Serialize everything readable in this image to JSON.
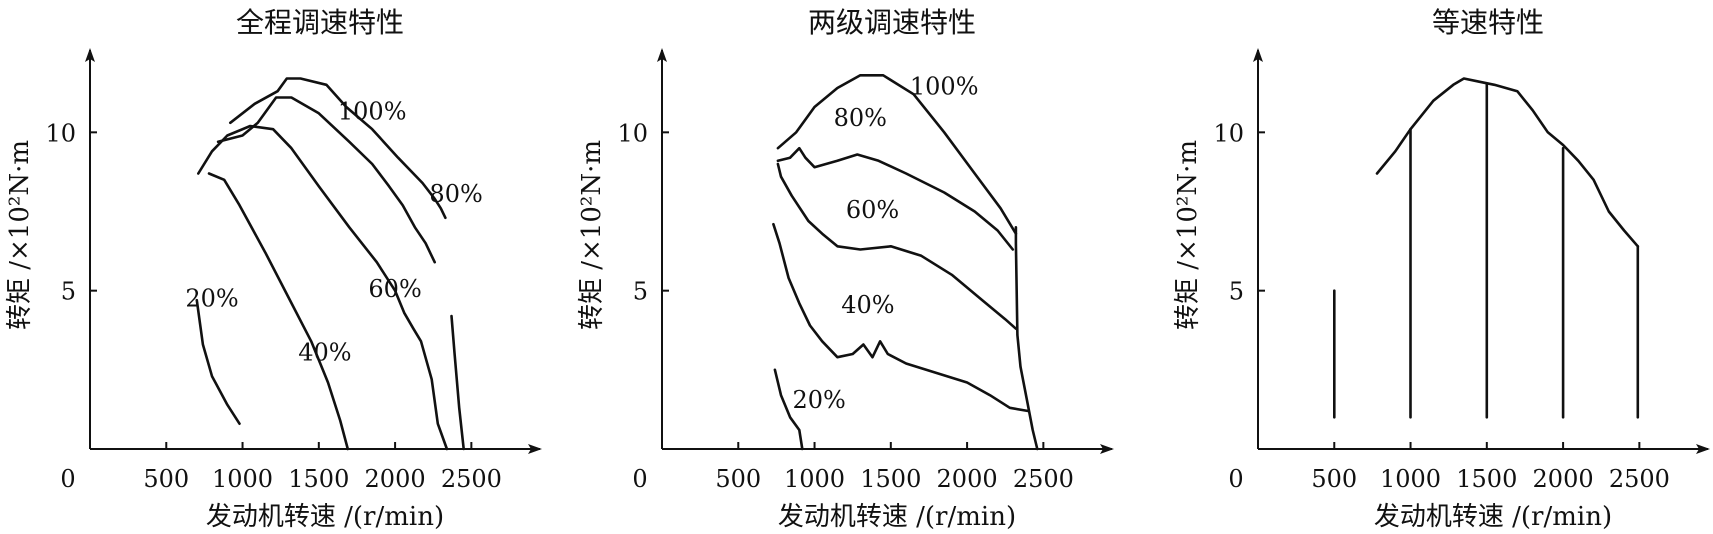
{
  "chart_data": [
    {
      "type": "line",
      "title": "全程调速特性",
      "xlabel": "发动机转速 /(r/min)",
      "ylabel": "转矩 /×10²N·m",
      "origin_label": "0",
      "xticks": [
        500,
        1000,
        1500,
        2000,
        2500
      ],
      "yticks": [
        5,
        10
      ],
      "xlim": [
        0,
        2950
      ],
      "ylim": [
        0,
        12.6
      ],
      "series": [
        {
          "name": "100%",
          "points": [
            [
              920,
              10.3
            ],
            [
              1080,
              10.9
            ],
            [
              1230,
              11.3
            ],
            [
              1290,
              11.7
            ],
            [
              1380,
              11.7
            ],
            [
              1550,
              11.5
            ],
            [
              1680,
              10.8
            ],
            [
              1850,
              10.1
            ],
            [
              2020,
              9.2
            ],
            [
              2180,
              8.4
            ],
            [
              2260,
              7.9
            ],
            [
              2300,
              7.6
            ],
            [
              2330,
              7.3
            ]
          ]
        },
        {
          "name": "80%",
          "points": [
            [
              840,
              9.7
            ],
            [
              1000,
              9.9
            ],
            [
              1100,
              10.3
            ],
            [
              1220,
              11.1
            ],
            [
              1320,
              11.1
            ],
            [
              1500,
              10.6
            ],
            [
              1700,
              9.7
            ],
            [
              1850,
              9.0
            ],
            [
              1960,
              8.3
            ],
            [
              2050,
              7.7
            ],
            [
              2130,
              7.0
            ],
            [
              2200,
              6.5
            ],
            [
              2260,
              5.9
            ]
          ]
        },
        {
          "name": "60%",
          "points": [
            [
              710,
              8.7
            ],
            [
              800,
              9.4
            ],
            [
              900,
              9.9
            ],
            [
              1050,
              10.2
            ],
            [
              1200,
              10.1
            ],
            [
              1320,
              9.5
            ],
            [
              1500,
              8.3
            ],
            [
              1700,
              7.0
            ],
            [
              1880,
              5.9
            ],
            [
              2000,
              5.0
            ],
            [
              2060,
              4.3
            ],
            [
              2120,
              3.8
            ],
            [
              2170,
              3.4
            ],
            [
              2240,
              2.2
            ],
            [
              2280,
              0.8
            ],
            [
              2340,
              0
            ]
          ]
        },
        {
          "name": "40%",
          "points": [
            [
              780,
              8.7
            ],
            [
              880,
              8.5
            ],
            [
              980,
              7.7
            ],
            [
              1150,
              6.2
            ],
            [
              1300,
              4.8
            ],
            [
              1450,
              3.4
            ],
            [
              1560,
              2.1
            ],
            [
              1640,
              0.9
            ],
            [
              1690,
              0
            ]
          ]
        },
        {
          "name": "20%",
          "points": [
            [
              700,
              4.7
            ],
            [
              740,
              3.3
            ],
            [
              800,
              2.3
            ],
            [
              900,
              1.4
            ],
            [
              980,
              0.8
            ]
          ]
        },
        {
          "name": "",
          "points": [
            [
              2370,
              4.2
            ],
            [
              2390,
              3.0
            ],
            [
              2420,
              1.3
            ],
            [
              2450,
              0
            ]
          ]
        }
      ],
      "curve_labels": [
        {
          "text": "100%",
          "x": 1850,
          "y": 10.4
        },
        {
          "text": "80%",
          "x": 2400,
          "y": 7.8
        },
        {
          "text": "60%",
          "x": 2000,
          "y": 4.8
        },
        {
          "text": "40%",
          "x": 1540,
          "y": 2.8
        },
        {
          "text": "20%",
          "x": 800,
          "y": 4.5
        }
      ]
    },
    {
      "type": "line",
      "title": "两级调速特性",
      "xlabel": "发动机转速 /(r/min)",
      "ylabel": "转矩 /×10²N·m",
      "origin_label": "0",
      "xticks": [
        500,
        1000,
        1500,
        2000,
        2500
      ],
      "yticks": [
        5,
        10
      ],
      "xlim": [
        0,
        2950
      ],
      "ylim": [
        0,
        12.6
      ],
      "series": [
        {
          "name": "100%",
          "points": [
            [
              760,
              9.5
            ],
            [
              880,
              10.0
            ],
            [
              1000,
              10.8
            ],
            [
              1150,
              11.4
            ],
            [
              1300,
              11.8
            ],
            [
              1450,
              11.8
            ],
            [
              1650,
              11.2
            ],
            [
              1850,
              10.0
            ],
            [
              2050,
              8.7
            ],
            [
              2220,
              7.6
            ],
            [
              2320,
              6.8
            ]
          ]
        },
        {
          "name": "80%",
          "points": [
            [
              760,
              9.1
            ],
            [
              840,
              9.2
            ],
            [
              900,
              9.5
            ],
            [
              940,
              9.2
            ],
            [
              1000,
              8.9
            ],
            [
              1150,
              9.1
            ],
            [
              1280,
              9.3
            ],
            [
              1420,
              9.1
            ],
            [
              1600,
              8.7
            ],
            [
              1850,
              8.1
            ],
            [
              2050,
              7.5
            ],
            [
              2200,
              6.9
            ],
            [
              2300,
              6.3
            ]
          ]
        },
        {
          "name": "60%",
          "points": [
            [
              760,
              9.0
            ],
            [
              780,
              8.6
            ],
            [
              850,
              8.0
            ],
            [
              960,
              7.2
            ],
            [
              1050,
              6.8
            ],
            [
              1150,
              6.4
            ],
            [
              1300,
              6.3
            ],
            [
              1500,
              6.4
            ],
            [
              1700,
              6.1
            ],
            [
              1900,
              5.5
            ],
            [
              2100,
              4.7
            ],
            [
              2250,
              4.1
            ],
            [
              2320,
              3.8
            ]
          ]
        },
        {
          "name": "40%",
          "points": [
            [
              730,
              7.1
            ],
            [
              770,
              6.5
            ],
            [
              830,
              5.4
            ],
            [
              900,
              4.6
            ],
            [
              970,
              3.9
            ],
            [
              1050,
              3.4
            ],
            [
              1150,
              2.9
            ],
            [
              1250,
              3.0
            ],
            [
              1320,
              3.3
            ],
            [
              1380,
              2.9
            ],
            [
              1430,
              3.4
            ],
            [
              1480,
              3.0
            ],
            [
              1600,
              2.7
            ],
            [
              1800,
              2.4
            ],
            [
              2000,
              2.1
            ],
            [
              2150,
              1.7
            ],
            [
              2280,
              1.3
            ],
            [
              2400,
              1.2
            ]
          ]
        },
        {
          "name": "20%",
          "points": [
            [
              740,
              2.5
            ],
            [
              780,
              1.7
            ],
            [
              840,
              1.0
            ],
            [
              900,
              0.6
            ],
            [
              920,
              0
            ]
          ]
        },
        {
          "name": "",
          "points": [
            [
              2320,
              7.0
            ],
            [
              2320,
              6.5
            ],
            [
              2330,
              3.6
            ],
            [
              2350,
              2.6
            ],
            [
              2390,
              1.6
            ],
            [
              2430,
              0.6
            ],
            [
              2460,
              0
            ]
          ]
        }
      ],
      "curve_labels": [
        {
          "text": "100%",
          "x": 1850,
          "y": 11.2
        },
        {
          "text": "80%",
          "x": 1300,
          "y": 10.2
        },
        {
          "text": "60%",
          "x": 1380,
          "y": 7.3
        },
        {
          "text": "40%",
          "x": 1350,
          "y": 4.3
        },
        {
          "text": "20%",
          "x": 1030,
          "y": 1.3
        }
      ]
    },
    {
      "type": "line",
      "title": "等速特性",
      "xlabel": "发动机转速 /(r/min)",
      "ylabel": "转矩 /×10²N·m",
      "origin_label": "0",
      "xticks": [
        500,
        1000,
        1500,
        2000,
        2500
      ],
      "yticks": [
        5,
        10
      ],
      "xlim": [
        0,
        2950
      ],
      "ylim": [
        0,
        12.6
      ],
      "series": [
        {
          "name": "",
          "points": [
            [
              780,
              8.7
            ],
            [
              900,
              9.4
            ],
            [
              1000,
              10.1
            ],
            [
              1150,
              11.0
            ],
            [
              1280,
              11.5
            ],
            [
              1350,
              11.7
            ],
            [
              1450,
              11.6
            ],
            [
              1550,
              11.5
            ],
            [
              1700,
              11.3
            ],
            [
              1800,
              10.7
            ],
            [
              1900,
              10.0
            ],
            [
              2000,
              9.6
            ],
            [
              2100,
              9.1
            ],
            [
              2200,
              8.5
            ],
            [
              2300,
              7.5
            ],
            [
              2400,
              6.9
            ],
            [
              2490,
              6.4
            ]
          ]
        },
        {
          "name": "",
          "points": [
            [
              500,
              1.0
            ],
            [
              500,
              5.0
            ]
          ]
        },
        {
          "name": "",
          "points": [
            [
              1000,
              1.0
            ],
            [
              1000,
              10.1
            ]
          ]
        },
        {
          "name": "",
          "points": [
            [
              1500,
              1.0
            ],
            [
              1500,
              11.5
            ]
          ]
        },
        {
          "name": "",
          "points": [
            [
              2000,
              1.0
            ],
            [
              2000,
              9.5
            ]
          ]
        },
        {
          "name": "",
          "points": [
            [
              2490,
              1.0
            ],
            [
              2490,
              6.4
            ]
          ]
        }
      ],
      "curve_labels": []
    }
  ]
}
